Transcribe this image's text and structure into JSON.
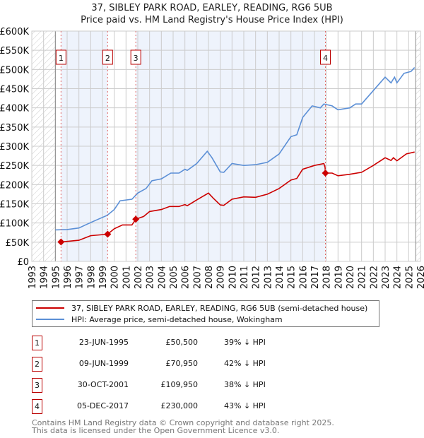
{
  "title_line1": "37, SIBLEY PARK ROAD, EARLEY, READING, RG6 5UB",
  "title_line2": "Price paid vs. HM Land Registry's House Price Index (HPI)",
  "colors": {
    "property": "#cc0000",
    "hpi": "#5b8fd6",
    "shade": "#eef3fc",
    "grid": "#cccccc"
  },
  "chart_data": {
    "type": "line",
    "xlim": [
      1993,
      2026
    ],
    "ylim": [
      0,
      600000
    ],
    "y_ticks": [
      0,
      50000,
      100000,
      150000,
      200000,
      250000,
      300000,
      350000,
      400000,
      450000,
      500000,
      550000,
      600000
    ],
    "y_tick_labels": [
      "£0",
      "£50K",
      "£100K",
      "£150K",
      "£200K",
      "£250K",
      "£300K",
      "£350K",
      "£400K",
      "£450K",
      "£500K",
      "£550K",
      "£600K"
    ],
    "x_tick_labels": [
      "1993",
      "1994",
      "1995",
      "1996",
      "1997",
      "1998",
      "1999",
      "2000",
      "2001",
      "2002",
      "2003",
      "2004",
      "2005",
      "2006",
      "2007",
      "2008",
      "2009",
      "2010",
      "2011",
      "2012",
      "2013",
      "2014",
      "2015",
      "2016",
      "2017",
      "2018",
      "2019",
      "2020",
      "2021",
      "2022",
      "2023",
      "2024",
      "2025",
      "2026"
    ],
    "grid": true,
    "hatched_ranges": [
      [
        1993,
        1995
      ],
      [
        2025.6,
        2026
      ]
    ],
    "series": [
      {
        "name": "37, SIBLEY PARK ROAD, EARLEY, READING, RG6 5UB (semi-detached house)",
        "x": [
          1995.48,
          1996,
          1997,
          1998,
          1999.44,
          2000,
          2000.7,
          2001.5,
          2001.83,
          2002.5,
          2003,
          2004,
          2004.7,
          2005.5,
          2006,
          2006.2,
          2007,
          2008,
          2008.4,
          2009,
          2009.3,
          2010,
          2011,
          2012,
          2013,
          2014,
          2015,
          2015.5,
          2016,
          2017,
          2017.8,
          2017.9,
          2017.93,
          2018.5,
          2019,
          2020,
          2021,
          2022,
          2023,
          2023.5,
          2023.7,
          2024,
          2024.8,
          2025.5
        ],
        "y": [
          50500,
          52000,
          55000,
          67000,
          70950,
          85000,
          95000,
          95000,
          109950,
          117000,
          130000,
          135000,
          143000,
          143000,
          148000,
          145000,
          160000,
          178000,
          165000,
          147000,
          146000,
          162000,
          168000,
          167000,
          175000,
          190000,
          212000,
          216000,
          240000,
          250000,
          255000,
          245000,
          230000,
          230000,
          223000,
          227000,
          232000,
          250000,
          270000,
          263000,
          270000,
          262000,
          280000,
          285000
        ]
      },
      {
        "name": "HPI: Average price, semi-detached house, Wokingham",
        "x": [
          1995,
          1996,
          1997,
          1997.7,
          1998.5,
          1999.4,
          2000,
          2000.5,
          2001.5,
          2002,
          2002.7,
          2003.2,
          2004,
          2004.8,
          2005.5,
          2006,
          2006.2,
          2007,
          2007.9,
          2008.3,
          2009,
          2009.3,
          2010,
          2011,
          2012,
          2013,
          2014,
          2015,
          2015.5,
          2016,
          2016.8,
          2017.5,
          2017.8,
          2018.5,
          2019,
          2020,
          2020.5,
          2021,
          2022,
          2023,
          2023.5,
          2023.8,
          2024,
          2024.6,
          2025.2,
          2025.5
        ],
        "y": [
          82000,
          83000,
          87000,
          97000,
          108000,
          120000,
          135000,
          158000,
          162000,
          178000,
          190000,
          210000,
          215000,
          230000,
          230000,
          240000,
          237000,
          255000,
          287000,
          270000,
          233000,
          232000,
          255000,
          250000,
          252000,
          258000,
          280000,
          325000,
          330000,
          375000,
          405000,
          400000,
          410000,
          405000,
          395000,
          400000,
          410000,
          410000,
          445000,
          480000,
          465000,
          480000,
          465000,
          490000,
          495000,
          505000
        ]
      }
    ],
    "sales": [
      {
        "label": "1",
        "x": 1995.48,
        "price": 50500
      },
      {
        "label": "2",
        "x": 1999.44,
        "price": 70950
      },
      {
        "label": "3",
        "x": 2001.83,
        "price": 109950
      },
      {
        "label": "4",
        "x": 2017.93,
        "price": 230000
      }
    ]
  },
  "legend": {
    "property": "37, SIBLEY PARK ROAD, EARLEY, READING, RG6 5UB (semi-detached house)",
    "hpi": "HPI: Average price, semi-detached house, Wokingham"
  },
  "transactions": [
    {
      "num": "1",
      "date": "23-JUN-1995",
      "price": "£50,500",
      "hpi": "39% ↓ HPI"
    },
    {
      "num": "2",
      "date": "09-JUN-1999",
      "price": "£70,950",
      "hpi": "42% ↓ HPI"
    },
    {
      "num": "3",
      "date": "30-OCT-2001",
      "price": "£109,950",
      "hpi": "38% ↓ HPI"
    },
    {
      "num": "4",
      "date": "05-DEC-2017",
      "price": "£230,000",
      "hpi": "43% ↓ HPI"
    }
  ],
  "footer": {
    "line1": "Contains HM Land Registry data © Crown copyright and database right 2025.",
    "line2": "This data is licensed under the Open Government Licence v3.0."
  }
}
